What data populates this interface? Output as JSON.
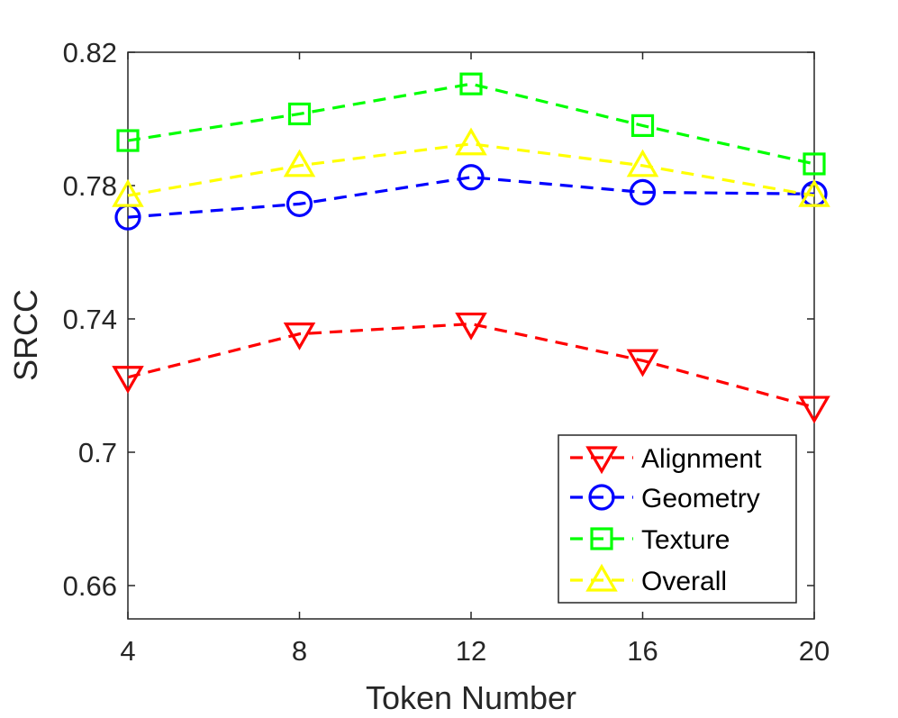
{
  "chart_data": {
    "type": "line",
    "title": "",
    "xlabel": "Token Number",
    "ylabel": "SRCC",
    "x": [
      4,
      8,
      12,
      16,
      20
    ],
    "x_ticks": [
      "4",
      "8",
      "12",
      "16",
      "20"
    ],
    "y_ticks": [
      "0.66",
      "0.7",
      "0.74",
      "0.78",
      "0.82"
    ],
    "y_tick_values": [
      0.66,
      0.7,
      0.74,
      0.78,
      0.82
    ],
    "xlim": [
      4,
      20
    ],
    "ylim": [
      0.65,
      0.82
    ],
    "grid": false,
    "legend_position": "bottom-right",
    "series": [
      {
        "name": "Alignment",
        "values": [
          0.7225,
          0.7355,
          0.7385,
          0.7275,
          0.7135
        ],
        "color": "#ff0000",
        "marker": "triangle-down"
      },
      {
        "name": "Geometry",
        "values": [
          0.7705,
          0.7745,
          0.7825,
          0.778,
          0.7775
        ],
        "color": "#0000ff",
        "marker": "circle"
      },
      {
        "name": "Texture",
        "values": [
          0.7935,
          0.8015,
          0.8105,
          0.798,
          0.7865
        ],
        "color": "#00ff00",
        "marker": "square"
      },
      {
        "name": "Overall",
        "values": [
          0.777,
          0.786,
          0.7925,
          0.786,
          0.777
        ],
        "color": "#ffff00",
        "marker": "triangle-up"
      }
    ]
  }
}
